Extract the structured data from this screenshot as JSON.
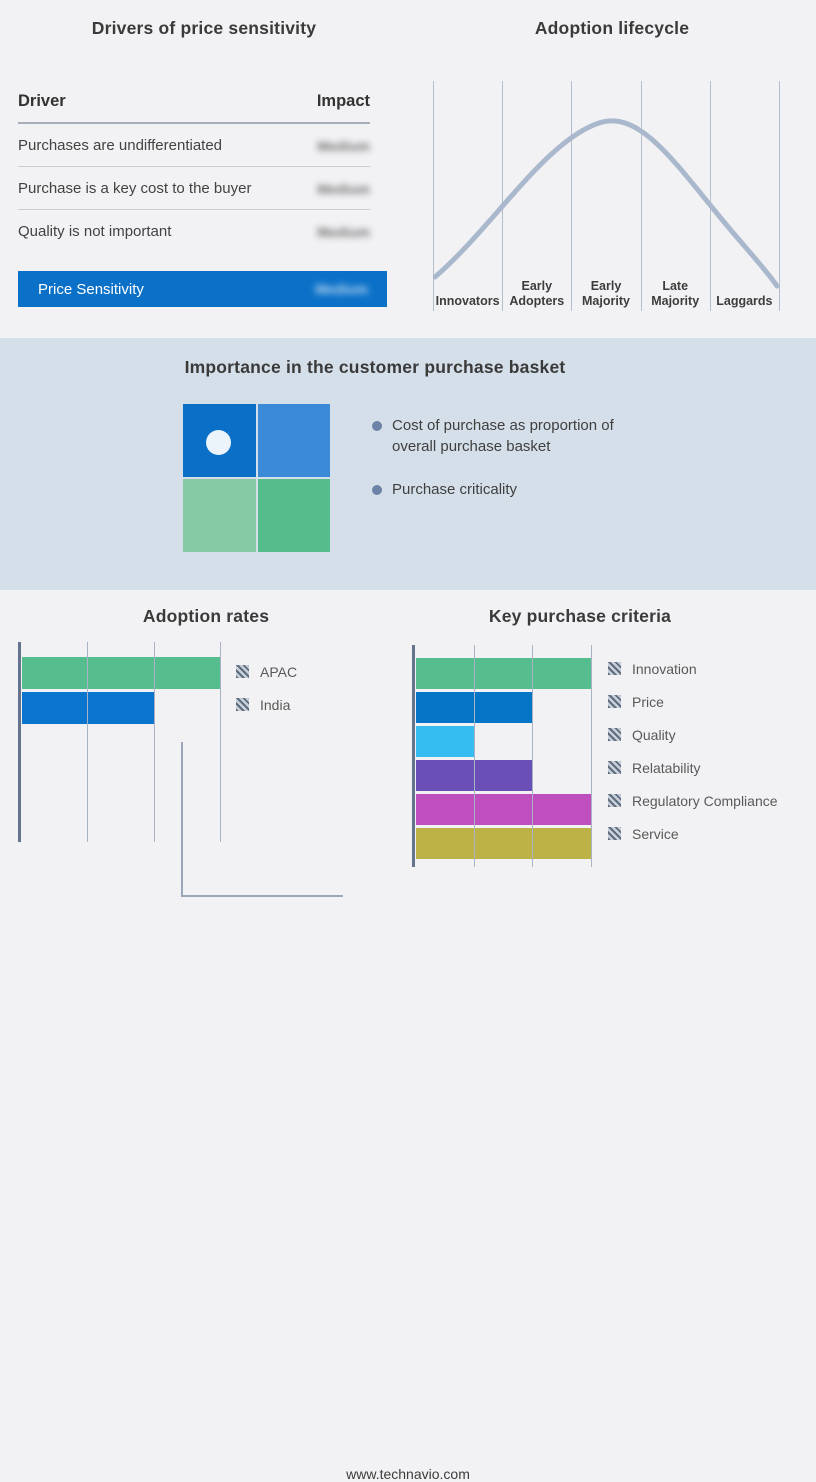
{
  "page": {
    "background": "#F2F2F4",
    "band_background": "#D5DFE9",
    "footer": "www.technavio.com"
  },
  "colors": {
    "accent_blue": "#0B71C8",
    "green": "#55BD8E",
    "cyan": "#35BDF2",
    "purple": "#6A50B6",
    "magenta": "#BF4FBE",
    "olive": "#BCB245",
    "curve": "#AAB8CD",
    "axis": "#64748F",
    "gridline": "#A9B3C5"
  },
  "drivers_panel": {
    "title": "Drivers of price sensitivity",
    "col_driver": "Driver",
    "col_impact": "Impact",
    "rows": [
      {
        "driver": "Purchases are undifferentiated",
        "impact": "Medium"
      },
      {
        "driver": "Purchase is a key cost to the buyer",
        "impact": "Medium"
      },
      {
        "driver": "Quality is not important",
        "impact": "Medium"
      }
    ],
    "highlight_row": {
      "driver": "Price Sensitivity",
      "impact": "Medium"
    },
    "impact_values_blurred": true
  },
  "basket_panel": {
    "title": "Importance in the customer purchase basket",
    "bullets": [
      "Cost of purchase as proportion of overall purchase basket",
      "Purchase criticality"
    ],
    "quadrant_colors": {
      "top_left": "#0A70C7",
      "top_right": "#3A8AD8",
      "bottom_left": "#85C9A5",
      "bottom_right": "#55BD8B"
    },
    "marker": "white dot in top-left quadrant"
  },
  "chart_data": [
    {
      "type": "bar",
      "orientation": "horizontal",
      "title": "Adoption rates",
      "categories": [
        "APAC",
        "India"
      ],
      "values": [
        3,
        2
      ],
      "xmax": 3,
      "colors": [
        "#55BD8E",
        "#0B74CC"
      ],
      "xlabel": "",
      "ylabel": "",
      "grid": true,
      "legend_position": "right",
      "legend_swatch_style": "diagonal-hatch"
    },
    {
      "type": "bar",
      "orientation": "horizontal",
      "title": "Key purchase criteria",
      "categories": [
        "Innovation",
        "Price",
        "Quality",
        "Relatability",
        "Regulatory Compliance",
        "Service"
      ],
      "values": [
        3,
        2,
        1,
        2,
        3,
        3
      ],
      "xmax": 3,
      "colors": [
        "#55BD8E",
        "#0575C8",
        "#35BDF2",
        "#6A50B6",
        "#BF4FBE",
        "#BCB245"
      ],
      "xlabel": "",
      "ylabel": "",
      "grid": true,
      "legend_position": "right",
      "legend_swatch_style": "diagonal-hatch"
    },
    {
      "type": "line",
      "title": "Adoption lifecycle",
      "stages": [
        "Innovators",
        "Early Adopters",
        "Early Majority",
        "Late Majority",
        "Laggards"
      ],
      "shape": "bell curve",
      "peak_stage": "Early Majority",
      "x": [
        0.0,
        0.2,
        0.35,
        0.48,
        0.6,
        0.8,
        1.0
      ],
      "y": [
        0.15,
        0.5,
        0.82,
        0.97,
        0.82,
        0.45,
        0.1
      ],
      "grid": true
    }
  ]
}
